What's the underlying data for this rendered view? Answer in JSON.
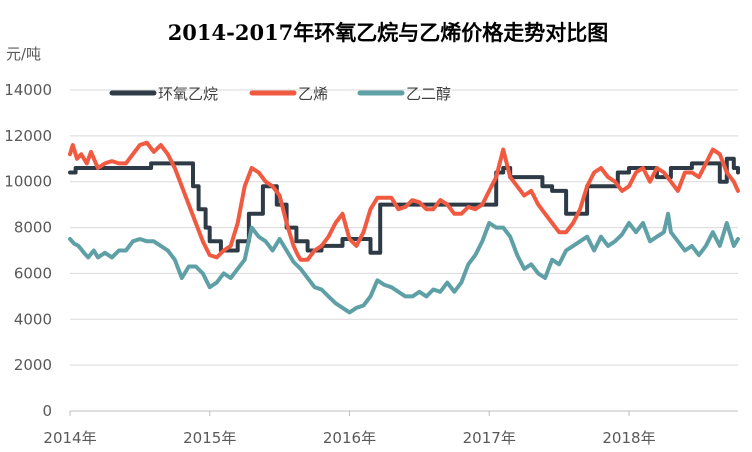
{
  "chart_data": {
    "type": "line",
    "title": "2014-2017年环氧乙烷与乙烯价格走势对比图",
    "ylabel": "元/吨",
    "xlabel": "",
    "ylim": [
      0,
      14000
    ],
    "y_ticks": [
      "0",
      "2000",
      "4000",
      "6000",
      "8000",
      "10000",
      "12000",
      "14000"
    ],
    "x_tick_labels": [
      "2014年",
      "2015年",
      "2016年",
      "2017年",
      "2018年"
    ],
    "xlim": [
      2014.0,
      2018.78
    ],
    "grid": "horizontal",
    "legend_position": "top-left",
    "series": [
      {
        "name": "环氧乙烷",
        "color": "#2E3B47",
        "step": true,
        "x": [
          2014.0,
          2014.04,
          2014.1,
          2014.25,
          2014.4,
          2014.58,
          2014.78,
          2014.88,
          2014.92,
          2014.97,
          2015.0,
          2015.08,
          2015.2,
          2015.28,
          2015.38,
          2015.48,
          2015.55,
          2015.62,
          2015.7,
          2015.8,
          2015.95,
          2016.05,
          2016.15,
          2016.22,
          2016.3,
          2016.45,
          2016.6,
          2016.75,
          2016.85,
          2016.95,
          2017.05,
          2017.1,
          2017.15,
          2017.25,
          2017.38,
          2017.45,
          2017.55,
          2017.62,
          2017.7,
          2017.8,
          2017.92,
          2018.0,
          2018.1,
          2018.2,
          2018.3,
          2018.45,
          2018.55,
          2018.65,
          2018.7,
          2018.75,
          2018.78
        ],
        "y": [
          10400,
          10600,
          10600,
          10600,
          10600,
          10800,
          10800,
          9800,
          8800,
          8000,
          7400,
          7000,
          7400,
          8600,
          9800,
          9000,
          8000,
          7400,
          7000,
          7200,
          7500,
          7500,
          6900,
          9000,
          9000,
          9000,
          9000,
          9000,
          9000,
          9000,
          10400,
          10600,
          10200,
          10200,
          9800,
          9600,
          8600,
          8600,
          9800,
          9800,
          10400,
          10600,
          10600,
          10200,
          10600,
          10800,
          10800,
          10000,
          11000,
          10600,
          10400
        ]
      },
      {
        "name": "乙烯",
        "color": "#F05A41",
        "step": false,
        "x": [
          2014.0,
          2014.02,
          2014.05,
          2014.08,
          2014.12,
          2014.15,
          2014.2,
          2014.25,
          2014.3,
          2014.35,
          2014.4,
          2014.45,
          2014.5,
          2014.55,
          2014.6,
          2014.65,
          2014.7,
          2014.75,
          2014.8,
          2014.85,
          2014.9,
          2014.95,
          2015.0,
          2015.05,
          2015.1,
          2015.15,
          2015.2,
          2015.25,
          2015.3,
          2015.35,
          2015.4,
          2015.45,
          2015.5,
          2015.55,
          2015.6,
          2015.63,
          2015.65,
          2015.7,
          2015.75,
          2015.8,
          2015.85,
          2015.9,
          2015.95,
          2016.0,
          2016.05,
          2016.1,
          2016.15,
          2016.2,
          2016.25,
          2016.3,
          2016.35,
          2016.4,
          2016.45,
          2016.5,
          2016.55,
          2016.6,
          2016.65,
          2016.7,
          2016.75,
          2016.8,
          2016.85,
          2016.9,
          2016.95,
          2017.0,
          2017.05,
          2017.1,
          2017.15,
          2017.2,
          2017.25,
          2017.3,
          2017.35,
          2017.4,
          2017.45,
          2017.5,
          2017.55,
          2017.6,
          2017.65,
          2017.7,
          2017.75,
          2017.8,
          2017.85,
          2017.9,
          2017.95,
          2018.0,
          2018.05,
          2018.1,
          2018.15,
          2018.2,
          2018.25,
          2018.3,
          2018.35,
          2018.4,
          2018.45,
          2018.5,
          2018.55,
          2018.6,
          2018.65,
          2018.7,
          2018.75,
          2018.78
        ],
        "y": [
          11200,
          11600,
          11000,
          11200,
          10800,
          11300,
          10600,
          10800,
          10900,
          10800,
          10800,
          11200,
          11600,
          11700,
          11300,
          11600,
          11200,
          10600,
          9800,
          9000,
          8200,
          7400,
          6800,
          6700,
          7000,
          7200,
          8200,
          9800,
          10600,
          10400,
          10000,
          9800,
          9400,
          8200,
          7200,
          6800,
          6600,
          6600,
          7000,
          7200,
          7600,
          8200,
          8600,
          7500,
          7200,
          7800,
          8800,
          9300,
          9300,
          9300,
          8800,
          8900,
          9200,
          9100,
          8800,
          8800,
          9200,
          9000,
          8600,
          8600,
          8900,
          8800,
          9000,
          9600,
          10200,
          11400,
          10200,
          9800,
          9400,
          9600,
          9000,
          8600,
          8200,
          7800,
          7800,
          8200,
          8800,
          9800,
          10400,
          10600,
          10200,
          10000,
          9600,
          9800,
          10400,
          10600,
          10000,
          10600,
          10400,
          10000,
          9600,
          10400,
          10400,
          10200,
          10800,
          11400,
          11200,
          10400,
          10000,
          9600
        ]
      },
      {
        "name": "乙二醇",
        "color": "#5FA0A7",
        "step": false,
        "x": [
          2014.0,
          2014.03,
          2014.06,
          2014.1,
          2014.13,
          2014.17,
          2014.2,
          2014.25,
          2014.3,
          2014.35,
          2014.4,
          2014.45,
          2014.5,
          2014.55,
          2014.6,
          2014.65,
          2014.7,
          2014.75,
          2014.8,
          2014.85,
          2014.9,
          2014.95,
          2015.0,
          2015.05,
          2015.1,
          2015.15,
          2015.2,
          2015.25,
          2015.3,
          2015.35,
          2015.4,
          2015.45,
          2015.5,
          2015.55,
          2015.6,
          2015.65,
          2015.7,
          2015.75,
          2015.8,
          2015.85,
          2015.9,
          2015.95,
          2016.0,
          2016.05,
          2016.1,
          2016.15,
          2016.2,
          2016.25,
          2016.3,
          2016.35,
          2016.4,
          2016.45,
          2016.5,
          2016.55,
          2016.6,
          2016.65,
          2016.7,
          2016.75,
          2016.8,
          2016.85,
          2016.9,
          2016.95,
          2017.0,
          2017.05,
          2017.1,
          2017.15,
          2017.2,
          2017.25,
          2017.3,
          2017.35,
          2017.4,
          2017.45,
          2017.5,
          2017.55,
          2017.6,
          2017.65,
          2017.7,
          2017.75,
          2017.8,
          2017.85,
          2017.9,
          2017.95,
          2018.0,
          2018.05,
          2018.1,
          2018.15,
          2018.2,
          2018.25,
          2018.28,
          2018.3,
          2018.35,
          2018.4,
          2018.45,
          2018.5,
          2018.55,
          2018.6,
          2018.65,
          2018.7,
          2018.75,
          2018.78
        ],
        "y": [
          7500,
          7300,
          7200,
          6900,
          6700,
          7000,
          6700,
          6900,
          6700,
          7000,
          7000,
          7400,
          7500,
          7400,
          7400,
          7200,
          7000,
          6600,
          5800,
          6300,
          6300,
          6000,
          5400,
          5600,
          6000,
          5800,
          6200,
          6600,
          8000,
          7600,
          7400,
          7000,
          7500,
          7000,
          6500,
          6200,
          5800,
          5400,
          5300,
          5000,
          4700,
          4500,
          4300,
          4500,
          4600,
          5000,
          5700,
          5500,
          5400,
          5200,
          5000,
          5000,
          5200,
          5000,
          5300,
          5200,
          5600,
          5200,
          5600,
          6400,
          6800,
          7400,
          8200,
          8000,
          8000,
          7600,
          6800,
          6200,
          6400,
          6000,
          5800,
          6600,
          6400,
          7000,
          7200,
          7400,
          7600,
          7000,
          7600,
          7200,
          7400,
          7700,
          8200,
          7800,
          8200,
          7400,
          7600,
          7800,
          8600,
          7800,
          7400,
          7000,
          7200,
          6800,
          7200,
          7800,
          7200,
          8200,
          7200,
          7500
        ]
      }
    ]
  }
}
